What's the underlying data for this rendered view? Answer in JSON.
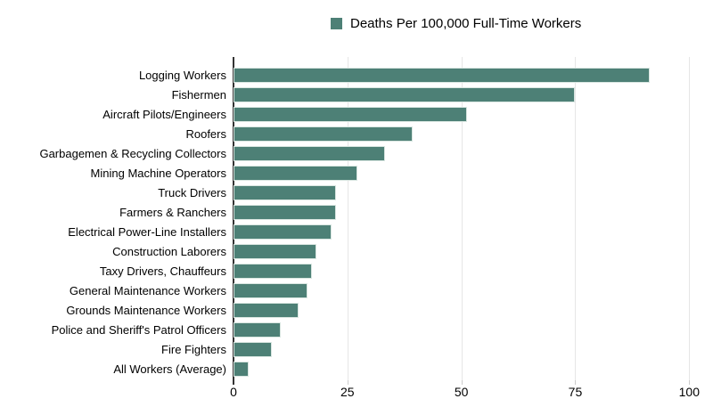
{
  "chart_data": {
    "type": "bar",
    "orientation": "horizontal",
    "legend_label": "Deaths Per 100,000 Full-Time Workers",
    "legend_position": "top-center",
    "categories": [
      "Logging Workers",
      "Fishermen",
      "Aircraft Pilots/Engineers",
      "Roofers",
      "Garbagemen & Recycling Collectors",
      "Mining Machine Operators",
      "Truck Drivers",
      "Farmers & Ranchers",
      "Electrical Power-Line Installers",
      "Construction Laborers",
      "Taxy Drivers, Chauffeurs",
      "General Maintenance Workers",
      "Grounds Maintenance Workers",
      "Police and Sheriff's Patrol Officers",
      "Fire Fighters",
      "All Workers (Average)"
    ],
    "values": [
      91.3,
      75.0,
      51.2,
      39.3,
      33.2,
      27.1,
      22.4,
      22.4,
      21.5,
      18.2,
      17.2,
      16.3,
      14.3,
      10.4,
      8.4,
      3.4
    ],
    "xlim": [
      0,
      100
    ],
    "x_ticks": [
      "0",
      "25",
      "50",
      "75",
      "100"
    ],
    "x_tick_values": [
      0,
      25,
      50,
      75,
      100
    ],
    "grid": "vertical-only",
    "colors": {
      "bar_fill": "#4d8076",
      "bar_border": "#d9e6e1",
      "gridline": "#e6e6e6",
      "tick": "#cccccc",
      "axis_line": "#333333",
      "text": "#000000",
      "background": "#ffffff"
    }
  }
}
